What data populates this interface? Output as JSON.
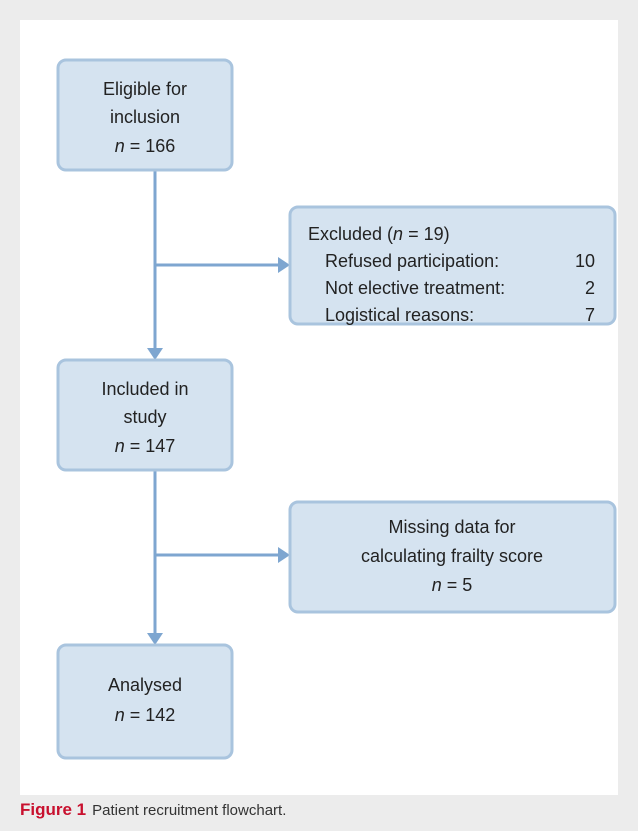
{
  "nodes": [
    {
      "lines": [
        "Eligible for",
        "inclusion"
      ],
      "count_symbol": "n",
      "count_value": "= 166"
    },
    {
      "lines": [
        "Included in",
        "study"
      ],
      "count_symbol": "n",
      "count_value": "= 147"
    },
    {
      "lines": [
        "Analysed"
      ],
      "count_symbol": "n",
      "count_value": "= 142"
    }
  ],
  "exclusions": [
    {
      "title_parts": [
        "Excluded (",
        "n",
        " = 19)"
      ],
      "items": [
        {
          "label": "Refused participation:",
          "value": 10
        },
        {
          "label": "Not elective treatment:",
          "value": 2
        },
        {
          "label": "Logistical reasons:",
          "value": 7
        }
      ]
    },
    {
      "lines": [
        "Missing data for",
        "calculating frailty score"
      ],
      "count_symbol": "n",
      "count_value": "= 5"
    }
  ],
  "caption": {
    "label": "Figure 1",
    "text": "Patient recruitment flowchart."
  }
}
